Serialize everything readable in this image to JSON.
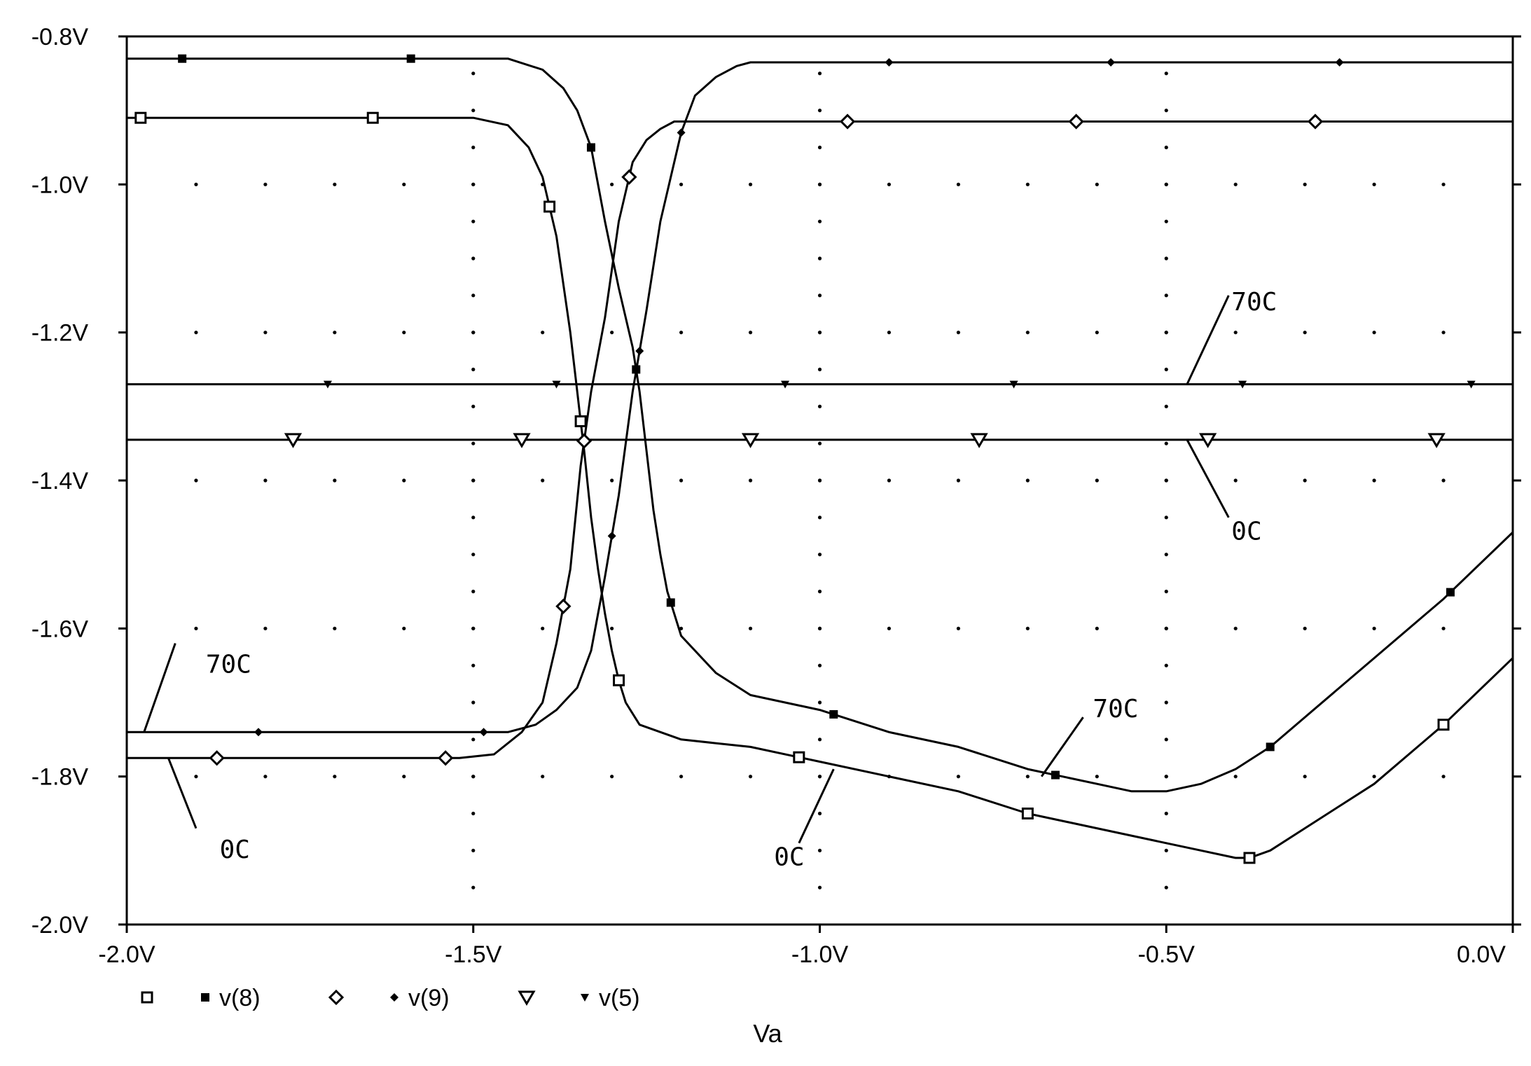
{
  "chart_data": {
    "type": "line",
    "title": "",
    "xlabel": "Va",
    "ylabel": "",
    "xlim": [
      -2.0,
      0.0
    ],
    "ylim": [
      -2.0,
      -0.8
    ],
    "x_ticks": [
      -2.0,
      -1.5,
      -1.0,
      -0.5,
      0.0
    ],
    "x_tick_labels": [
      "-2.0V",
      "-1.5V",
      "-1.0V",
      "-0.5V",
      "0.0V"
    ],
    "y_ticks": [
      -0.8,
      -1.0,
      -1.2,
      -1.4,
      -1.6,
      -1.8,
      -2.0
    ],
    "y_tick_labels": [
      "-0.8V",
      "-1.0V",
      "-1.2V",
      "-1.4V",
      "-1.6V",
      "-1.8V",
      "-2.0V"
    ],
    "grid": "dotted",
    "legend_position": "bottom-left",
    "legend": [
      {
        "label": "v(8)",
        "markers": [
          "open-square",
          "filled-square"
        ]
      },
      {
        "label": "v(9)",
        "markers": [
          "open-diamond",
          "filled-diamond"
        ]
      },
      {
        "label": "v(5)",
        "markers": [
          "open-triangle-down",
          "filled-triangle-down"
        ]
      }
    ],
    "series": [
      {
        "legend": "v(8)",
        "condition": "0C",
        "marker": "open-square",
        "x": [
          -2.0,
          -1.6,
          -1.5,
          -1.45,
          -1.42,
          -1.4,
          -1.38,
          -1.36,
          -1.35,
          -1.345,
          -1.34,
          -1.33,
          -1.32,
          -1.31,
          -1.3,
          -1.29,
          -1.28,
          -1.26,
          -1.2,
          -1.1,
          -1.0,
          -0.9,
          -0.8,
          -0.7,
          -0.6,
          -0.5,
          -0.45,
          -0.4,
          -0.38,
          -0.35,
          -0.3,
          -0.2,
          -0.1,
          0.0
        ],
        "y": [
          -0.91,
          -0.91,
          -0.91,
          -0.92,
          -0.95,
          -0.99,
          -1.07,
          -1.2,
          -1.28,
          -1.32,
          -1.36,
          -1.45,
          -1.52,
          -1.58,
          -1.63,
          -1.67,
          -1.7,
          -1.73,
          -1.75,
          -1.76,
          -1.78,
          -1.8,
          -1.82,
          -1.85,
          -1.87,
          -1.89,
          -1.9,
          -1.91,
          -1.91,
          -1.9,
          -1.87,
          -1.81,
          -1.73,
          -1.64
        ],
        "marker_x": [
          -1.98,
          -1.645,
          -1.39,
          -1.345,
          -1.29,
          -1.03,
          -0.7,
          -0.38,
          -0.1
        ]
      },
      {
        "legend": "v(8)",
        "condition": "70C",
        "marker": "filled-square",
        "x": [
          -2.0,
          -1.6,
          -1.5,
          -1.45,
          -1.4,
          -1.37,
          -1.35,
          -1.33,
          -1.31,
          -1.29,
          -1.27,
          -1.26,
          -1.25,
          -1.24,
          -1.23,
          -1.22,
          -1.2,
          -1.15,
          -1.1,
          -1.0,
          -0.9,
          -0.8,
          -0.7,
          -0.6,
          -0.55,
          -0.5,
          -0.45,
          -0.4,
          -0.35,
          -0.3,
          -0.2,
          -0.1,
          0.0
        ],
        "y": [
          -0.83,
          -0.83,
          -0.83,
          -0.83,
          -0.845,
          -0.87,
          -0.9,
          -0.95,
          -1.05,
          -1.14,
          -1.22,
          -1.28,
          -1.36,
          -1.44,
          -1.5,
          -1.55,
          -1.61,
          -1.66,
          -1.69,
          -1.71,
          -1.74,
          -1.76,
          -1.79,
          -1.81,
          -1.82,
          -1.82,
          -1.81,
          -1.79,
          -1.76,
          -1.72,
          -1.64,
          -1.56,
          -1.47
        ],
        "marker_x": [
          -1.92,
          -1.59,
          -1.33,
          -1.265,
          -1.215,
          -0.98,
          -0.66,
          -0.35,
          -0.09
        ]
      },
      {
        "legend": "v(9)",
        "condition": "0C",
        "marker": "open-diamond",
        "x": [
          -2.0,
          -1.6,
          -1.52,
          -1.47,
          -1.43,
          -1.4,
          -1.38,
          -1.36,
          -1.345,
          -1.33,
          -1.31,
          -1.29,
          -1.27,
          -1.25,
          -1.23,
          -1.21,
          -1.2,
          -1.15,
          -1.0,
          -0.5,
          0.0
        ],
        "y": [
          -1.775,
          -1.775,
          -1.775,
          -1.77,
          -1.74,
          -1.7,
          -1.62,
          -1.52,
          -1.38,
          -1.28,
          -1.18,
          -1.05,
          -0.97,
          -0.94,
          -0.925,
          -0.915,
          -0.915,
          -0.915,
          -0.915,
          -0.915,
          -0.915
        ],
        "marker_x": [
          -1.87,
          -1.54,
          -1.37,
          -1.34,
          -1.275,
          -0.96,
          -0.63,
          -0.285
        ]
      },
      {
        "legend": "v(9)",
        "condition": "70C",
        "marker": "filled-diamond",
        "x": [
          -2.0,
          -1.6,
          -1.5,
          -1.45,
          -1.41,
          -1.38,
          -1.35,
          -1.33,
          -1.31,
          -1.29,
          -1.27,
          -1.25,
          -1.23,
          -1.21,
          -1.2,
          -1.18,
          -1.15,
          -1.12,
          -1.1,
          -1.0,
          -0.5,
          0.0
        ],
        "y": [
          -1.74,
          -1.74,
          -1.74,
          -1.74,
          -1.73,
          -1.71,
          -1.68,
          -1.63,
          -1.53,
          -1.42,
          -1.28,
          -1.17,
          -1.05,
          -0.97,
          -0.93,
          -0.88,
          -0.855,
          -0.84,
          -0.835,
          -0.835,
          -0.835,
          -0.835
        ],
        "marker_x": [
          -1.81,
          -1.485,
          -1.3,
          -1.26,
          -1.2,
          -0.9,
          -0.58,
          -0.25
        ]
      },
      {
        "legend": "v(5)",
        "condition": "0C",
        "marker": "open-triangle-down",
        "x": [
          -2.0,
          0.0
        ],
        "y": [
          -1.345,
          -1.345
        ],
        "marker_x": [
          -1.76,
          -1.43,
          -1.1,
          -0.77,
          -0.44,
          -0.11
        ]
      },
      {
        "legend": "v(5)",
        "condition": "70C",
        "marker": "filled-triangle-down",
        "x": [
          -2.0,
          0.0
        ],
        "y": [
          -1.27,
          -1.27
        ],
        "marker_x": [
          -1.71,
          -1.38,
          -1.05,
          -0.72,
          -0.39,
          -0.06
        ]
      }
    ],
    "annotations": [
      {
        "text": "70C",
        "arrow_from": [
          -0.41,
          -1.15
        ],
        "arrow_to": [
          -0.47,
          -1.27
        ],
        "label_at": [
          -0.41,
          -1.17
        ]
      },
      {
        "text": "0C",
        "arrow_from": [
          -0.47,
          -1.345
        ],
        "arrow_to": [
          -0.41,
          -1.45
        ],
        "label_at": [
          -0.41,
          -1.48
        ]
      },
      {
        "text": "70C",
        "arrow_from": [
          -1.93,
          -1.62
        ],
        "arrow_to": [
          -1.975,
          -1.74
        ],
        "label_at": [
          -1.89,
          -1.66
        ]
      },
      {
        "text": "0C",
        "arrow_from": [
          -1.94,
          -1.775
        ],
        "arrow_to": [
          -1.9,
          -1.87
        ],
        "label_at": [
          -1.87,
          -1.91
        ]
      },
      {
        "text": "70C",
        "arrow_from": [
          -0.62,
          -1.72
        ],
        "arrow_to": [
          -0.68,
          -1.8
        ],
        "label_at": [
          -0.61,
          -1.72
        ]
      },
      {
        "text": "0C",
        "arrow_from": [
          -0.98,
          -1.79
        ],
        "arrow_to": [
          -1.03,
          -1.89
        ],
        "label_at": [
          -1.07,
          -1.92
        ]
      }
    ]
  }
}
